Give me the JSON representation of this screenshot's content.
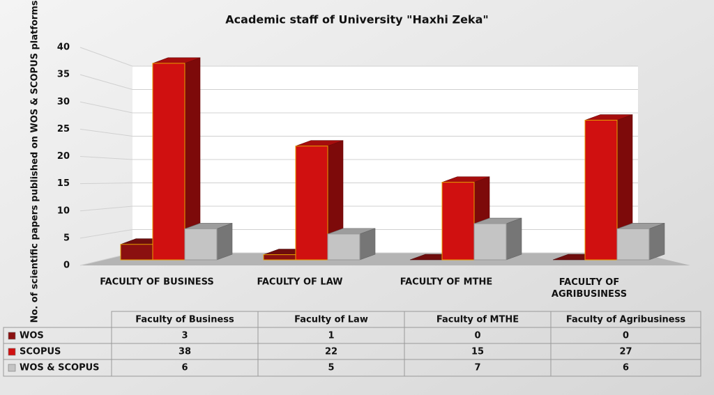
{
  "chart_data": {
    "type": "bar3d",
    "title": "Academic staff of University \"Haxhi Zeka\"",
    "y_label": "No. of scientific papers published on WOS & SCOPUS platforms",
    "categories": [
      "Faculty of Business",
      "Faculty of Law",
      "Faculty of MTHE",
      "Faculty of Agribusiness"
    ],
    "series": [
      {
        "name": "WOS",
        "color": "#8b1010",
        "values": [
          3,
          1,
          0,
          0
        ]
      },
      {
        "name": "SCOPUS",
        "color": "#d01010",
        "values": [
          38,
          22,
          15,
          27
        ]
      },
      {
        "name": "WOS & SCOPUS",
        "color": "#c4c4c4",
        "values": [
          6,
          5,
          7,
          6
        ]
      }
    ],
    "ylim": [
      0,
      40
    ],
    "yticks": [
      0,
      5,
      10,
      15,
      20,
      25,
      30,
      35,
      40
    ],
    "grid": true
  }
}
